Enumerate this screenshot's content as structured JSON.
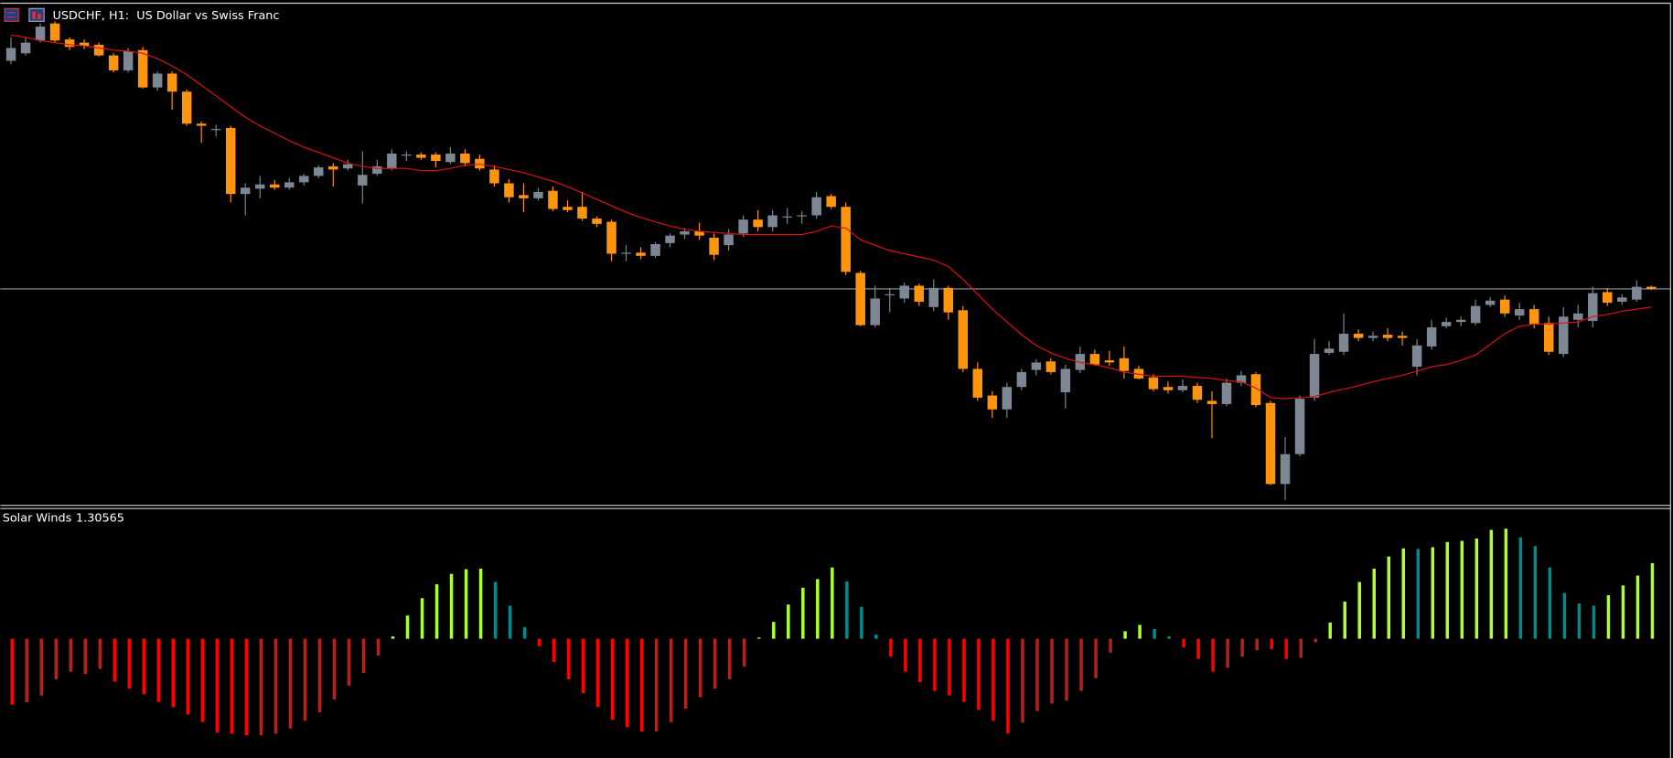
{
  "chart_data": [
    {
      "type": "candlestick",
      "title": "USDCHF, H1:  US Dollar vs Swiss Franc",
      "up_color": "#7d8794",
      "down_color": "#ff9410",
      "ylim": [
        0.87,
        0.9169
      ],
      "last_price_line": true,
      "ohlc": [
        [
          0.9116,
          0.9138,
          0.9113,
          0.9128
        ],
        [
          0.9123,
          0.9138,
          0.9121,
          0.9133
        ],
        [
          0.9135,
          0.9151,
          0.9133,
          0.9148
        ],
        [
          0.9151,
          0.9153,
          0.9133,
          0.9135
        ],
        [
          0.9136,
          0.9138,
          0.9126,
          0.9129
        ],
        [
          0.9133,
          0.9136,
          0.9127,
          0.913
        ],
        [
          0.9131,
          0.9133,
          0.912,
          0.9121
        ],
        [
          0.9121,
          0.9123,
          0.9105,
          0.9107
        ],
        [
          0.9107,
          0.9128,
          0.9105,
          0.9125
        ],
        [
          0.9126,
          0.9129,
          0.909,
          0.9091
        ],
        [
          0.9091,
          0.9106,
          0.9088,
          0.9104
        ],
        [
          0.9104,
          0.9106,
          0.907,
          0.9087
        ],
        [
          0.9087,
          0.9089,
          0.9055,
          0.9057
        ],
        [
          0.9057,
          0.9059,
          0.9039,
          0.9055
        ],
        [
          0.9051,
          0.9056,
          0.9045,
          0.9052
        ],
        [
          0.9053,
          0.9055,
          0.8983,
          0.8991
        ],
        [
          0.8991,
          0.9001,
          0.8971,
          0.8997
        ],
        [
          0.8996,
          0.9008,
          0.8987,
          0.9
        ],
        [
          0.9,
          0.9004,
          0.8995,
          0.8997
        ],
        [
          0.8997,
          0.9006,
          0.8995,
          0.9002
        ],
        [
          0.9002,
          0.901,
          0.8999,
          0.9008
        ],
        [
          0.9008,
          0.9018,
          0.9006,
          0.9016
        ],
        [
          0.9017,
          0.902,
          0.8998,
          0.9014
        ],
        [
          0.9015,
          0.9023,
          0.9013,
          0.9019
        ],
        [
          0.8999,
          0.9031,
          0.8982,
          0.9009
        ],
        [
          0.901,
          0.9023,
          0.9008,
          0.9017
        ],
        [
          0.9015,
          0.9033,
          0.9013,
          0.9029
        ],
        [
          0.9027,
          0.9031,
          0.9022,
          0.9028
        ],
        [
          0.9028,
          0.903,
          0.9023,
          0.9025
        ],
        [
          0.9028,
          0.903,
          0.9016,
          0.9022
        ],
        [
          0.9021,
          0.9035,
          0.9019,
          0.9029
        ],
        [
          0.9029,
          0.9033,
          0.9017,
          0.902
        ],
        [
          0.9024,
          0.9028,
          0.9013,
          0.9015
        ],
        [
          0.9014,
          0.9018,
          0.8998,
          0.9001
        ],
        [
          0.9001,
          0.9005,
          0.8983,
          0.8988
        ],
        [
          0.899,
          0.9001,
          0.8974,
          0.8987
        ],
        [
          0.8987,
          0.8997,
          0.8985,
          0.8993
        ],
        [
          0.8994,
          0.8998,
          0.8975,
          0.8977
        ],
        [
          0.8979,
          0.8985,
          0.8974,
          0.8976
        ],
        [
          0.8979,
          0.8993,
          0.8966,
          0.8968
        ],
        [
          0.8968,
          0.897,
          0.896,
          0.8963
        ],
        [
          0.8965,
          0.8967,
          0.8928,
          0.8935
        ],
        [
          0.8935,
          0.8943,
          0.8928,
          0.8936
        ],
        [
          0.8936,
          0.8941,
          0.893,
          0.8933
        ],
        [
          0.8933,
          0.8946,
          0.8931,
          0.8944
        ],
        [
          0.8945,
          0.8954,
          0.8941,
          0.8952
        ],
        [
          0.8953,
          0.8959,
          0.8949,
          0.8956
        ],
        [
          0.8956,
          0.8964,
          0.8948,
          0.8952
        ],
        [
          0.895,
          0.8954,
          0.8929,
          0.8934
        ],
        [
          0.8943,
          0.8958,
          0.8938,
          0.8953
        ],
        [
          0.8954,
          0.8971,
          0.8951,
          0.8967
        ],
        [
          0.8967,
          0.8976,
          0.8956,
          0.896
        ],
        [
          0.896,
          0.8976,
          0.8956,
          0.8971
        ],
        [
          0.8969,
          0.8978,
          0.8963,
          0.897
        ],
        [
          0.897,
          0.8975,
          0.8963,
          0.8971
        ],
        [
          0.8971,
          0.8993,
          0.8968,
          0.8988
        ],
        [
          0.8989,
          0.8991,
          0.8977,
          0.8979
        ],
        [
          0.8979,
          0.8983,
          0.8915,
          0.8918
        ],
        [
          0.8917,
          0.8919,
          0.8867,
          0.8868
        ],
        [
          0.8868,
          0.8905,
          0.8866,
          0.8893
        ],
        [
          0.8896,
          0.8903,
          0.888,
          0.8897
        ],
        [
          0.8893,
          0.8908,
          0.8889,
          0.8905
        ],
        [
          0.8905,
          0.8907,
          0.8886,
          0.889
        ],
        [
          0.8885,
          0.8911,
          0.8881,
          0.8903
        ],
        [
          0.8903,
          0.8905,
          0.8873,
          0.888
        ],
        [
          0.8882,
          0.8886,
          0.8824,
          0.8827
        ],
        [
          0.8827,
          0.8833,
          0.8797,
          0.88
        ],
        [
          0.8802,
          0.8806,
          0.8781,
          0.8789
        ],
        [
          0.8789,
          0.8814,
          0.8781,
          0.881
        ],
        [
          0.881,
          0.8827,
          0.8807,
          0.8824
        ],
        [
          0.8826,
          0.8836,
          0.8821,
          0.8833
        ],
        [
          0.8834,
          0.8837,
          0.8822,
          0.8824
        ],
        [
          0.8805,
          0.8831,
          0.879,
          0.8827
        ],
        [
          0.8826,
          0.8848,
          0.8823,
          0.8841
        ],
        [
          0.8841,
          0.8845,
          0.883,
          0.8831
        ],
        [
          0.8835,
          0.8844,
          0.883,
          0.8833
        ],
        [
          0.8837,
          0.8848,
          0.8818,
          0.8825
        ],
        [
          0.8827,
          0.883,
          0.8817,
          0.8818
        ],
        [
          0.8819,
          0.8822,
          0.8806,
          0.8808
        ],
        [
          0.881,
          0.8815,
          0.8804,
          0.8807
        ],
        [
          0.8807,
          0.8817,
          0.8805,
          0.8811
        ],
        [
          0.8811,
          0.8814,
          0.8795,
          0.8798
        ],
        [
          0.8797,
          0.8806,
          0.8762,
          0.8794
        ],
        [
          0.8794,
          0.8818,
          0.8792,
          0.8814
        ],
        [
          0.8814,
          0.8825,
          0.8811,
          0.8821
        ],
        [
          0.8822,
          0.8824,
          0.8791,
          0.8793
        ],
        [
          0.8795,
          0.8797,
          0.8718,
          0.8719
        ],
        [
          0.8719,
          0.8763,
          0.8704,
          0.8747
        ],
        [
          0.8747,
          0.8802,
          0.8745,
          0.8799
        ],
        [
          0.88,
          0.8855,
          0.8797,
          0.8841
        ],
        [
          0.8842,
          0.8853,
          0.884,
          0.8846
        ],
        [
          0.8843,
          0.8879,
          0.884,
          0.886
        ],
        [
          0.886,
          0.8864,
          0.8853,
          0.8856
        ],
        [
          0.8856,
          0.8862,
          0.8853,
          0.8858
        ],
        [
          0.8859,
          0.8865,
          0.8853,
          0.8856
        ],
        [
          0.8858,
          0.8862,
          0.8849,
          0.8856
        ],
        [
          0.8829,
          0.8855,
          0.8821,
          0.8849
        ],
        [
          0.8848,
          0.8873,
          0.8845,
          0.8866
        ],
        [
          0.8867,
          0.8875,
          0.8865,
          0.8871
        ],
        [
          0.8871,
          0.8876,
          0.8867,
          0.8873
        ],
        [
          0.887,
          0.8892,
          0.8868,
          0.8886
        ],
        [
          0.8887,
          0.8894,
          0.8885,
          0.8891
        ],
        [
          0.8892,
          0.8896,
          0.8876,
          0.8879
        ],
        [
          0.8877,
          0.8889,
          0.8873,
          0.8883
        ],
        [
          0.8883,
          0.8887,
          0.8865,
          0.8869
        ],
        [
          0.887,
          0.8876,
          0.884,
          0.8843
        ],
        [
          0.8841,
          0.8885,
          0.8838,
          0.8876
        ],
        [
          0.8873,
          0.8887,
          0.8866,
          0.8879
        ],
        [
          0.8872,
          0.8904,
          0.8866,
          0.8898
        ],
        [
          0.8899,
          0.8903,
          0.8886,
          0.8889
        ],
        [
          0.889,
          0.8897,
          0.8887,
          0.8894
        ],
        [
          0.8892,
          0.891,
          0.889,
          0.8904
        ],
        [
          0.8904,
          0.8905,
          0.8901,
          0.8902
        ]
      ],
      "overlay": {
        "type": "line",
        "color": "#e01010",
        "values": [
          0.914,
          0.9138,
          0.9135,
          0.9133,
          0.9131,
          0.913,
          0.9128,
          0.9126,
          0.9125,
          0.9123,
          0.9118,
          0.9111,
          0.9103,
          0.9093,
          0.9083,
          0.9073,
          0.9063,
          0.9055,
          0.9048,
          0.9041,
          0.9035,
          0.903,
          0.9025,
          0.902,
          0.9017,
          0.9015,
          0.9015,
          0.9015,
          0.9013,
          0.9013,
          0.9015,
          0.9018,
          0.9019,
          0.9017,
          0.9014,
          0.9011,
          0.9007,
          0.9003,
          0.8998,
          0.8992,
          0.8986,
          0.898,
          0.8974,
          0.8969,
          0.8965,
          0.8961,
          0.8958,
          0.8956,
          0.8955,
          0.8954,
          0.8953,
          0.8953,
          0.8953,
          0.8953,
          0.8953,
          0.8956,
          0.8961,
          0.8959,
          0.8948,
          0.8943,
          0.8938,
          0.8935,
          0.8932,
          0.8929,
          0.8923,
          0.8911,
          0.8897,
          0.8883,
          0.8871,
          0.8859,
          0.8849,
          0.8842,
          0.8837,
          0.8833,
          0.8831,
          0.8828,
          0.8824,
          0.8822,
          0.882,
          0.882,
          0.882,
          0.8819,
          0.8818,
          0.8816,
          0.8815,
          0.8809,
          0.88,
          0.8799,
          0.88,
          0.8801,
          0.8805,
          0.8808,
          0.8811,
          0.8815,
          0.8818,
          0.8821,
          0.8825,
          0.8829,
          0.8831,
          0.8835,
          0.884,
          0.885,
          0.886,
          0.8867,
          0.8869,
          0.8869,
          0.887,
          0.8871,
          0.8876,
          0.8878,
          0.8881,
          0.8883,
          0.8885
        ]
      }
    },
    {
      "type": "bar",
      "title": "Solar Winds",
      "ylim": [
        -2.06,
        2.23
      ],
      "values": [
        -1.14,
        -1.1,
        -0.98,
        -0.7,
        -0.57,
        -0.61,
        -0.52,
        -0.74,
        -0.86,
        -0.96,
        -1.09,
        -1.18,
        -1.31,
        -1.44,
        -1.62,
        -1.64,
        -1.67,
        -1.67,
        -1.64,
        -1.55,
        -1.42,
        -1.27,
        -1.05,
        -0.81,
        -0.59,
        -0.29,
        0.04,
        0.4,
        0.7,
        0.94,
        1.12,
        1.2,
        1.21,
        0.98,
        0.57,
        0.2,
        -0.13,
        -0.4,
        -0.7,
        -0.94,
        -1.18,
        -1.4,
        -1.53,
        -1.6,
        -1.6,
        -1.44,
        -1.21,
        -1.01,
        -0.86,
        -0.7,
        -0.48,
        0.02,
        0.29,
        0.59,
        0.88,
        1.03,
        1.23,
        0.99,
        0.55,
        0.07,
        -0.31,
        -0.57,
        -0.75,
        -0.9,
        -0.98,
        -1.09,
        -1.23,
        -1.42,
        -1.64,
        -1.45,
        -1.25,
        -1.12,
        -1.07,
        -0.9,
        -0.68,
        -0.24,
        0.13,
        0.24,
        0.17,
        0.04,
        -0.15,
        -0.35,
        -0.57,
        -0.5,
        -0.31,
        -0.2,
        -0.18,
        -0.35,
        -0.33,
        -0.06,
        0.28,
        0.64,
        0.98,
        1.21,
        1.42,
        1.56,
        1.55,
        1.58,
        1.67,
        1.69,
        1.73,
        1.88,
        1.9,
        1.75,
        1.6,
        1.23,
        0.79,
        0.61,
        0.57,
        0.75,
        0.92,
        1.09,
        1.30565
      ],
      "colors": [
        "#ff0000",
        "#b22222",
        "#b22222",
        "#b22222",
        "#b22222",
        "#b22222",
        "#b22222",
        "#ff0000",
        "#ff0000",
        "#ff0000",
        "#ff0000",
        "#ff0000",
        "#ff0000",
        "#ff0000",
        "#ff0000",
        "#ff0000",
        "#ff0000",
        "#b22222",
        "#b22222",
        "#b22222",
        "#b22222",
        "#b22222",
        "#b22222",
        "#b22222",
        "#b22222",
        "#b22222",
        "#adff2f",
        "#adff2f",
        "#adff2f",
        "#adff2f",
        "#adff2f",
        "#adff2f",
        "#adff2f",
        "#008b8b",
        "#008b8b",
        "#008b8b",
        "#ff0000",
        "#ff0000",
        "#ff0000",
        "#ff0000",
        "#ff0000",
        "#ff0000",
        "#ff0000",
        "#ff0000",
        "#b22222",
        "#b22222",
        "#b22222",
        "#b22222",
        "#b22222",
        "#b22222",
        "#b22222",
        "#adff2f",
        "#adff2f",
        "#adff2f",
        "#adff2f",
        "#adff2f",
        "#adff2f",
        "#008b8b",
        "#008b8b",
        "#008b8b",
        "#ff0000",
        "#ff0000",
        "#ff0000",
        "#ff0000",
        "#ff0000",
        "#ff0000",
        "#ff0000",
        "#ff0000",
        "#ff0000",
        "#b22222",
        "#b22222",
        "#b22222",
        "#b22222",
        "#b22222",
        "#b22222",
        "#b22222",
        "#adff2f",
        "#adff2f",
        "#008b8b",
        "#008b8b",
        "#ff0000",
        "#ff0000",
        "#ff0000",
        "#b22222",
        "#b22222",
        "#b22222",
        "#ff0000",
        "#ff0000",
        "#b22222",
        "#b22222",
        "#adff2f",
        "#adff2f",
        "#adff2f",
        "#adff2f",
        "#adff2f",
        "#adff2f",
        "#008b8b",
        "#adff2f",
        "#adff2f",
        "#adff2f",
        "#adff2f",
        "#adff2f",
        "#adff2f",
        "#008b8b",
        "#008b8b",
        "#008b8b",
        "#008b8b",
        "#008b8b",
        "#008b8b",
        "#adff2f",
        "#adff2f",
        "#adff2f",
        "#adff2f"
      ]
    }
  ]
}
